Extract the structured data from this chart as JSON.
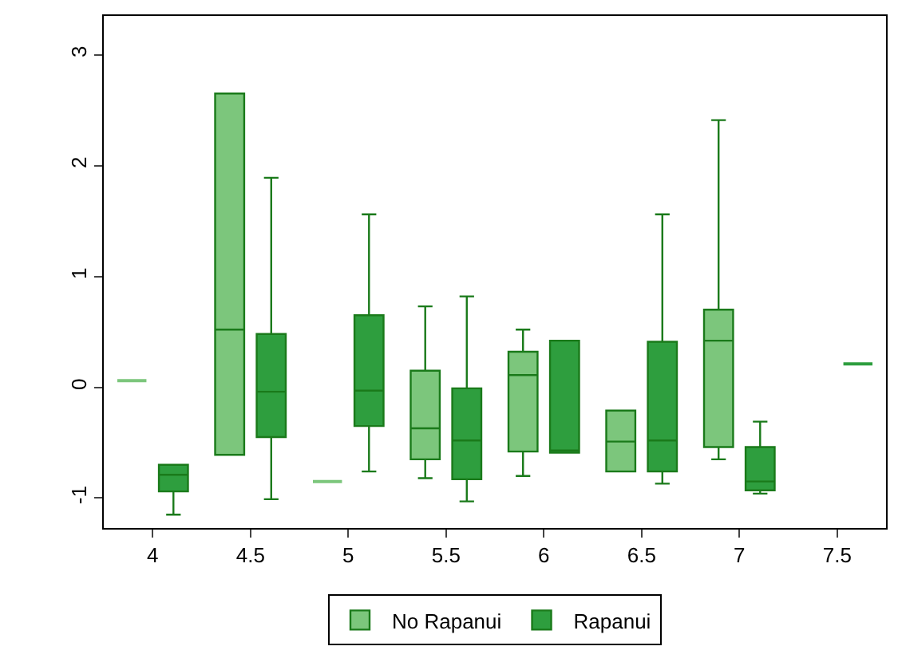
{
  "chart_data": {
    "type": "box",
    "categories": [
      "4",
      "4.5",
      "5",
      "5.5",
      "6",
      "6.5",
      "7",
      "7.5"
    ],
    "series": [
      {
        "name": "No Rapanui",
        "color": "#7cc67c",
        "boxes": [
          {
            "low": 0.06,
            "q1": 0.06,
            "median": 0.06,
            "q3": 0.06,
            "high": 0.06
          },
          {
            "low": -0.61,
            "q1": -0.61,
            "median": 0.52,
            "q3": 2.65,
            "high": 2.65
          },
          {
            "low": -0.85,
            "q1": -0.85,
            "median": -0.85,
            "q3": -0.85,
            "high": -0.85
          },
          {
            "low": -0.82,
            "q1": -0.65,
            "median": -0.37,
            "q3": 0.15,
            "high": 0.73
          },
          {
            "low": -0.8,
            "q1": -0.58,
            "median": 0.11,
            "q3": 0.32,
            "high": 0.52
          },
          {
            "low": -0.76,
            "q1": -0.76,
            "median": -0.49,
            "q3": -0.21,
            "high": -0.21
          },
          {
            "low": -0.65,
            "q1": -0.54,
            "median": 0.42,
            "q3": 0.7,
            "high": 2.41
          },
          null
        ]
      },
      {
        "name": "Rapanui",
        "color": "#2e9e3e",
        "boxes": [
          {
            "low": -1.15,
            "q1": -0.94,
            "median": -0.79,
            "q3": -0.7,
            "high": -0.7
          },
          {
            "low": -1.01,
            "q1": -0.45,
            "median": -0.04,
            "q3": 0.48,
            "high": 1.89
          },
          {
            "low": -0.76,
            "q1": -0.35,
            "median": -0.03,
            "q3": 0.65,
            "high": 1.56
          },
          {
            "low": -1.03,
            "q1": -0.83,
            "median": -0.48,
            "q3": -0.01,
            "high": 0.82
          },
          {
            "low": -0.59,
            "q1": -0.59,
            "median": -0.57,
            "q3": 0.42,
            "high": 0.42
          },
          {
            "low": -0.87,
            "q1": -0.76,
            "median": -0.48,
            "q3": 0.41,
            "high": 1.56
          },
          {
            "low": -0.96,
            "q1": -0.93,
            "median": -0.85,
            "q3": -0.54,
            "high": -0.31
          },
          {
            "low": 0.21,
            "q1": 0.21,
            "median": 0.21,
            "q3": 0.21,
            "high": 0.21
          }
        ]
      }
    ],
    "ylim": [
      -1.27,
      3.35
    ],
    "yticks": [
      -1,
      0,
      1,
      2,
      3
    ],
    "legend": "bottom"
  }
}
